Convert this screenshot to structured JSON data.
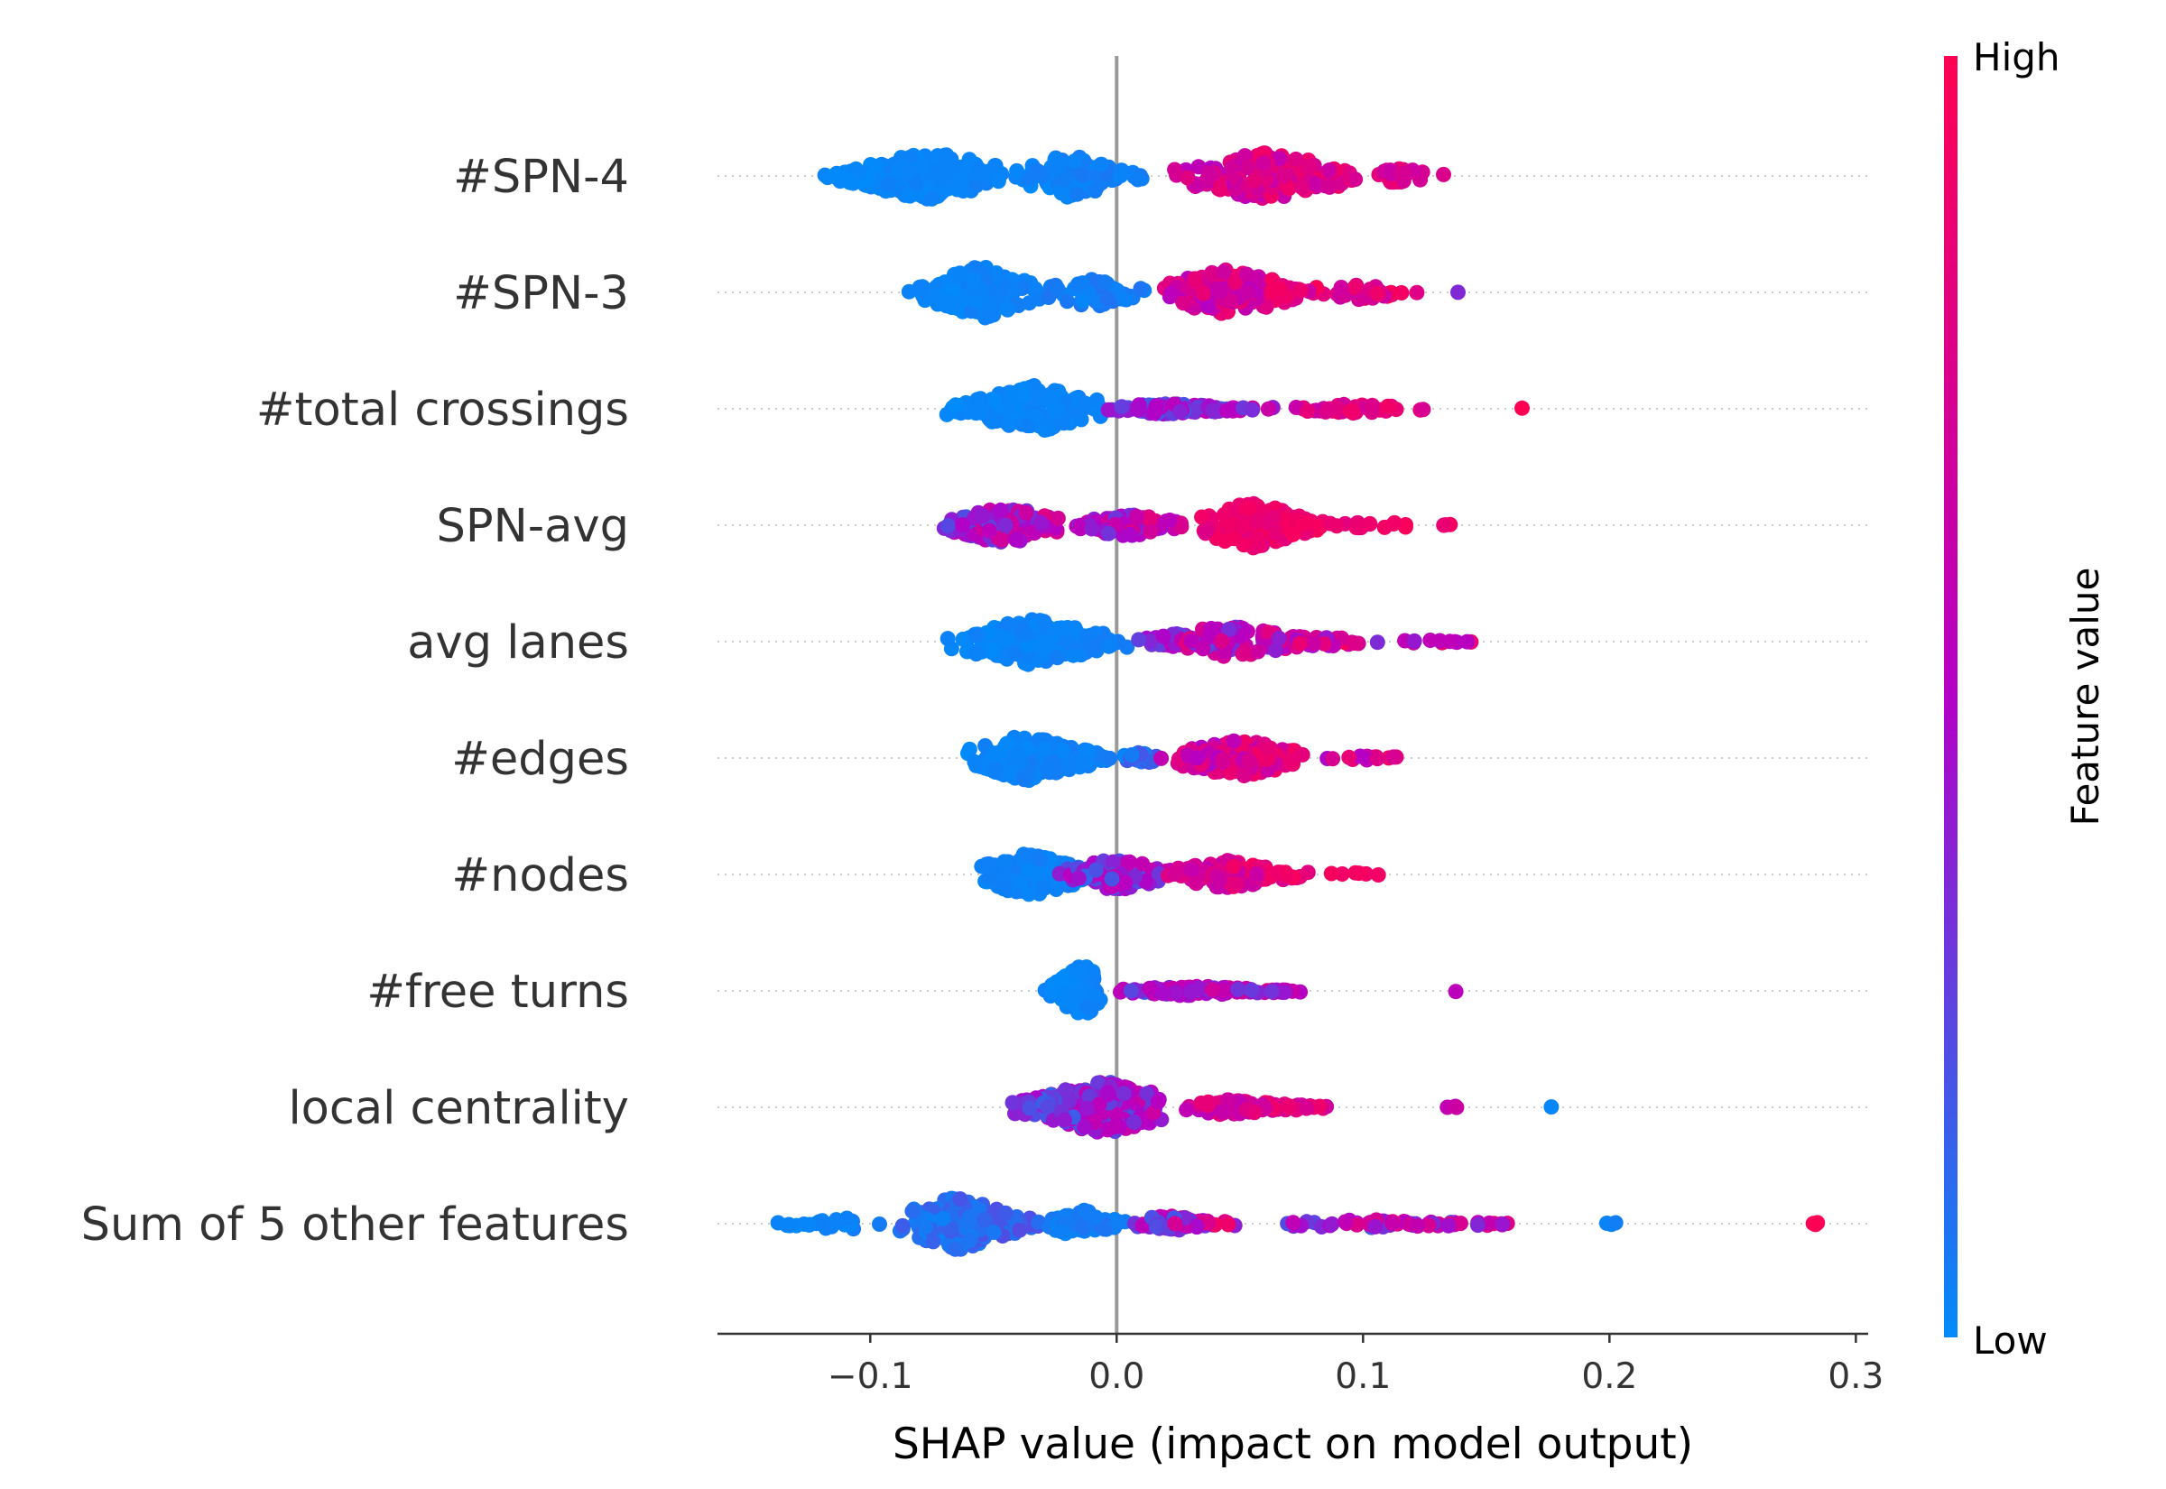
{
  "chart_data": {
    "type": "scatter",
    "variant": "shap-beeswarm",
    "title": "",
    "xlabel": "SHAP value (impact on model output)",
    "xlim": [
      -0.162,
      0.305
    ],
    "xticks": [
      -0.1,
      0.0,
      0.1,
      0.2,
      0.3
    ],
    "xtick_labels": [
      "−0.1",
      "0.0",
      "0.1",
      "0.2",
      "0.3"
    ],
    "zero_line": 0.0,
    "colorbar": {
      "title": "Feature value",
      "high_label": "High",
      "low_label": "Low",
      "low_color": "#008bfb",
      "mid_color": "#b400c7",
      "high_color": "#ff0052"
    },
    "features": [
      {
        "name": "#SPN-4",
        "max_width": 28,
        "clusters": [
          {
            "low": -0.12,
            "high": -0.045,
            "peak": -0.075,
            "count": 220,
            "width": 1.0,
            "c0": 0.0,
            "c1": 0.05
          },
          {
            "low": -0.045,
            "high": 0.015,
            "peak": -0.02,
            "count": 90,
            "width": 0.85,
            "c0": 0.0,
            "c1": 0.08
          },
          {
            "low": 0.015,
            "high": 0.1,
            "peak": 0.06,
            "count": 150,
            "width": 0.95,
            "c0": 0.45,
            "c1": 1.0
          },
          {
            "low": 0.1,
            "high": 0.136,
            "peak": 0.115,
            "count": 25,
            "width": 0.3,
            "c0": 0.55,
            "c1": 1.0
          }
        ]
      },
      {
        "name": "#SPN-3",
        "max_width": 30,
        "clusters": [
          {
            "low": -0.085,
            "high": -0.03,
            "peak": -0.055,
            "count": 170,
            "width": 1.0,
            "c0": 0.0,
            "c1": 0.06
          },
          {
            "low": -0.03,
            "high": 0.015,
            "peak": -0.01,
            "count": 60,
            "width": 0.55,
            "c0": 0.0,
            "c1": 0.12
          },
          {
            "low": 0.015,
            "high": 0.085,
            "peak": 0.045,
            "count": 150,
            "width": 0.85,
            "c0": 0.45,
            "c1": 1.0
          },
          {
            "low": 0.085,
            "high": 0.125,
            "peak": 0.1,
            "count": 30,
            "width": 0.3,
            "c0": 0.55,
            "c1": 1.0
          },
          {
            "low": 0.138,
            "high": 0.142,
            "peak": 0.14,
            "count": 1,
            "width": 0.05,
            "c0": 0.35,
            "c1": 0.36
          }
        ]
      },
      {
        "name": "#total crossings",
        "max_width": 26,
        "clusters": [
          {
            "low": -0.07,
            "high": -0.005,
            "peak": -0.033,
            "count": 190,
            "width": 1.0,
            "c0": 0.0,
            "c1": 0.05
          },
          {
            "low": -0.005,
            "high": 0.07,
            "peak": 0.02,
            "count": 110,
            "width": 0.22,
            "c0": 0.05,
            "c1": 0.7
          },
          {
            "low": 0.07,
            "high": 0.128,
            "peak": 0.095,
            "count": 45,
            "width": 0.2,
            "c0": 0.6,
            "c1": 1.0
          },
          {
            "low": 0.162,
            "high": 0.166,
            "peak": 0.164,
            "count": 1,
            "width": 0.05,
            "c0": 0.98,
            "c1": 1.0
          }
        ]
      },
      {
        "name": "SPN-avg",
        "max_width": 26,
        "clusters": [
          {
            "low": -0.072,
            "high": -0.02,
            "peak": -0.045,
            "count": 150,
            "width": 0.85,
            "c0": 0.15,
            "c1": 0.85
          },
          {
            "low": -0.02,
            "high": 0.03,
            "peak": 0.005,
            "count": 80,
            "width": 0.5,
            "c0": 0.2,
            "c1": 0.9
          },
          {
            "low": 0.03,
            "high": 0.085,
            "peak": 0.055,
            "count": 190,
            "width": 1.0,
            "c0": 0.75,
            "c1": 1.0
          },
          {
            "low": 0.085,
            "high": 0.145,
            "peak": 0.1,
            "count": 20,
            "width": 0.15,
            "c0": 0.8,
            "c1": 1.0
          }
        ]
      },
      {
        "name": "avg lanes",
        "max_width": 26,
        "clusters": [
          {
            "low": -0.07,
            "high": 0.005,
            "peak": -0.035,
            "count": 200,
            "width": 1.0,
            "c0": 0.0,
            "c1": 0.06
          },
          {
            "low": 0.005,
            "high": 0.045,
            "peak": 0.025,
            "count": 50,
            "width": 0.35,
            "c0": 0.1,
            "c1": 0.95
          },
          {
            "low": 0.03,
            "high": 0.1,
            "peak": 0.045,
            "count": 110,
            "width": 0.7,
            "c0": 0.2,
            "c1": 1.0
          },
          {
            "low": 0.1,
            "high": 0.153,
            "peak": 0.12,
            "count": 12,
            "width": 0.1,
            "c0": 0.3,
            "c1": 1.0
          }
        ]
      },
      {
        "name": "#edges",
        "max_width": 26,
        "clusters": [
          {
            "low": -0.062,
            "high": 0.0,
            "peak": -0.037,
            "count": 210,
            "width": 1.0,
            "c0": 0.0,
            "c1": 0.07
          },
          {
            "low": 0.0,
            "high": 0.02,
            "peak": 0.01,
            "count": 30,
            "width": 0.25,
            "c0": 0.0,
            "c1": 0.25
          },
          {
            "low": 0.015,
            "high": 0.08,
            "peak": 0.05,
            "count": 140,
            "width": 0.8,
            "c0": 0.4,
            "c1": 1.0
          },
          {
            "low": 0.08,
            "high": 0.128,
            "peak": 0.095,
            "count": 14,
            "width": 0.12,
            "c0": 0.4,
            "c1": 1.0
          }
        ]
      },
      {
        "name": "#nodes",
        "max_width": 26,
        "clusters": [
          {
            "low": -0.058,
            "high": -0.005,
            "peak": -0.035,
            "count": 170,
            "width": 0.95,
            "c0": 0.0,
            "c1": 0.07
          },
          {
            "low": -0.025,
            "high": 0.025,
            "peak": 0.0,
            "count": 80,
            "width": 0.7,
            "c0": 0.05,
            "c1": 0.75
          },
          {
            "low": 0.02,
            "high": 0.08,
            "peak": 0.045,
            "count": 120,
            "width": 0.6,
            "c0": 0.55,
            "c1": 1.0
          },
          {
            "low": 0.08,
            "high": 0.108,
            "peak": 0.095,
            "count": 6,
            "width": 0.08,
            "c0": 0.85,
            "c1": 1.0
          }
        ]
      },
      {
        "name": "#free turns",
        "max_width": 30,
        "clusters": [
          {
            "low": -0.03,
            "high": -0.005,
            "peak": -0.014,
            "count": 120,
            "width": 1.0,
            "c0": 0.0,
            "c1": 0.05
          },
          {
            "low": -0.005,
            "high": 0.08,
            "peak": 0.03,
            "count": 110,
            "width": 0.18,
            "c0": 0.1,
            "c1": 0.85
          },
          {
            "low": 0.136,
            "high": 0.14,
            "peak": 0.138,
            "count": 1,
            "width": 0.05,
            "c0": 0.55,
            "c1": 0.56
          }
        ]
      },
      {
        "name": "local centrality",
        "max_width": 30,
        "clusters": [
          {
            "low": -0.045,
            "high": 0.025,
            "peak": -0.005,
            "count": 250,
            "width": 1.0,
            "c0": 0.05,
            "c1": 0.7
          },
          {
            "low": 0.025,
            "high": 0.095,
            "peak": 0.045,
            "count": 90,
            "width": 0.28,
            "c0": 0.5,
            "c1": 1.0
          },
          {
            "low": 0.134,
            "high": 0.14,
            "peak": 0.137,
            "count": 3,
            "width": 0.05,
            "c0": 0.5,
            "c1": 0.7
          },
          {
            "low": 0.174,
            "high": 0.178,
            "peak": 0.176,
            "count": 1,
            "width": 0.05,
            "c0": 0.0,
            "c1": 0.02
          }
        ]
      },
      {
        "name": "Sum of 5 other features",
        "max_width": 30,
        "clusters": [
          {
            "low": -0.142,
            "high": -0.09,
            "peak": -0.11,
            "count": 25,
            "width": 0.25,
            "c0": 0.0,
            "c1": 0.06
          },
          {
            "low": -0.09,
            "high": -0.03,
            "peak": -0.065,
            "count": 190,
            "width": 1.0,
            "c0": 0.0,
            "c1": 0.25
          },
          {
            "low": -0.03,
            "high": 0.005,
            "peak": -0.015,
            "count": 60,
            "width": 0.55,
            "c0": 0.0,
            "c1": 0.1
          },
          {
            "low": 0.005,
            "high": 0.05,
            "peak": 0.02,
            "count": 70,
            "width": 0.3,
            "c0": 0.05,
            "c1": 1.0
          },
          {
            "low": 0.05,
            "high": 0.18,
            "peak": 0.1,
            "count": 70,
            "width": 0.15,
            "c0": 0.05,
            "c1": 1.0
          },
          {
            "low": 0.195,
            "high": 0.222,
            "peak": 0.205,
            "count": 3,
            "width": 0.05,
            "c0": 0.0,
            "c1": 0.15
          },
          {
            "low": 0.281,
            "high": 0.285,
            "peak": 0.283,
            "count": 4,
            "width": 0.08,
            "c0": 0.98,
            "c1": 1.0
          }
        ]
      }
    ]
  }
}
